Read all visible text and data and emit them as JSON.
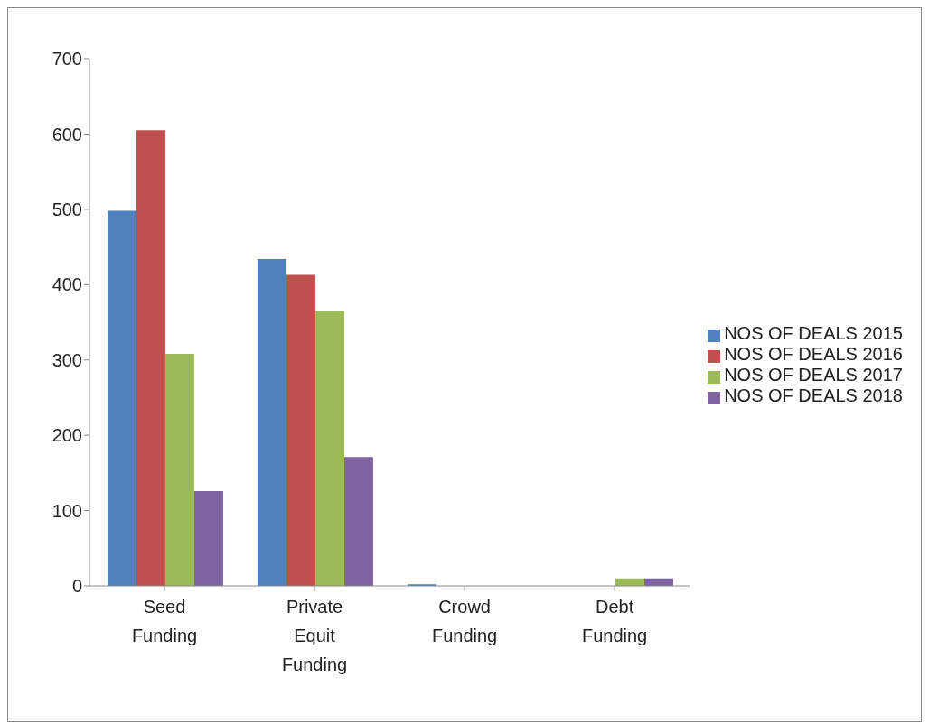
{
  "chart_data": {
    "type": "bar",
    "categories": [
      "Seed Funding",
      "Private Equit Funding",
      "Crowd Funding",
      "Debt Funding"
    ],
    "series": [
      {
        "name": "NOS OF DEALS 2015",
        "color": "#4f81bd",
        "values": [
          498,
          434,
          2,
          0
        ]
      },
      {
        "name": "NOS OF DEALS 2016",
        "color": "#c0504d",
        "values": [
          605,
          413,
          0,
          0
        ]
      },
      {
        "name": "NOS OF DEALS 2017",
        "color": "#9bbb59",
        "values": [
          308,
          365,
          0,
          10
        ]
      },
      {
        "name": "NOS OF DEALS 2018",
        "color": "#8064a2",
        "values": [
          126,
          171,
          0,
          10
        ]
      }
    ],
    "ylim": [
      0,
      700
    ],
    "yticks": [
      0,
      100,
      200,
      300,
      400,
      500,
      600,
      700
    ],
    "grid": false,
    "legend": "right"
  }
}
